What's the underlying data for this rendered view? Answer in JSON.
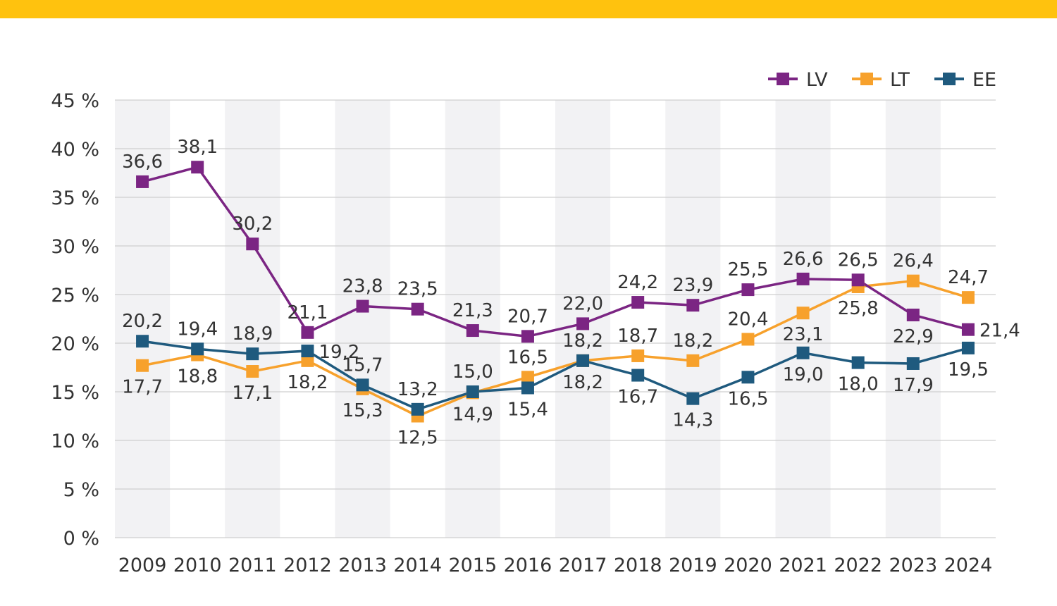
{
  "colors": {
    "top_bar": "#ffc20e",
    "band": "#f2f2f4",
    "grid": "#cfcfcf",
    "LV": "#7b2583",
    "LT": "#f7a12c",
    "EE": "#1f5a7e"
  },
  "chart_data": {
    "type": "line",
    "title": "",
    "xlabel": "",
    "ylabel": "",
    "ylim": [
      0,
      45
    ],
    "y_ticks": [
      "0 %",
      "5 %",
      "10 %",
      "15 %",
      "20 %",
      "25 %",
      "30 %",
      "35 %",
      "40 %",
      "45 %"
    ],
    "categories": [
      "2009",
      "2010",
      "2011",
      "2012",
      "2013",
      "2014",
      "2015",
      "2016",
      "2017",
      "2018",
      "2019",
      "2020",
      "2021",
      "2022",
      "2023",
      "2024"
    ],
    "legend_position": "top-right",
    "series": [
      {
        "name": "LV",
        "values": [
          36.6,
          38.1,
          30.2,
          21.1,
          23.8,
          23.5,
          21.3,
          20.7,
          22.0,
          24.2,
          23.9,
          25.5,
          26.6,
          26.5,
          22.9,
          21.4
        ],
        "labels": [
          "36,6",
          "38,1",
          "30,2",
          "21,1",
          "23,8",
          "23,5",
          "21,3",
          "20,7",
          "22,0",
          "24,2",
          "23,9",
          "25,5",
          "26,6",
          "26,5",
          "22,9",
          "21,4"
        ]
      },
      {
        "name": "LT",
        "values": [
          17.7,
          18.8,
          17.1,
          18.2,
          15.3,
          12.5,
          14.9,
          16.5,
          18.2,
          18.7,
          18.2,
          20.4,
          23.1,
          25.8,
          26.4,
          24.7
        ],
        "labels": [
          "17,7",
          "18,8",
          "17,1",
          "18,2",
          "15,3",
          "12,5",
          "14,9",
          "16,5",
          "18,2",
          "18,7",
          "18,2",
          "20,4",
          "23,1",
          "25,8",
          "26,4",
          "24,7"
        ]
      },
      {
        "name": "EE",
        "values": [
          20.2,
          19.4,
          18.9,
          19.2,
          15.7,
          13.2,
          15.0,
          15.4,
          18.2,
          16.7,
          14.3,
          16.5,
          19.0,
          18.0,
          17.9,
          19.5
        ],
        "labels": [
          "20,2",
          "19,4",
          "18,9",
          "19,2",
          "15,7",
          "13,2",
          "15,0",
          "15,4",
          "18,2",
          "16,7",
          "14,3",
          "16,5",
          "19,0",
          "18,0",
          "17,9",
          "19,5"
        ]
      }
    ]
  }
}
